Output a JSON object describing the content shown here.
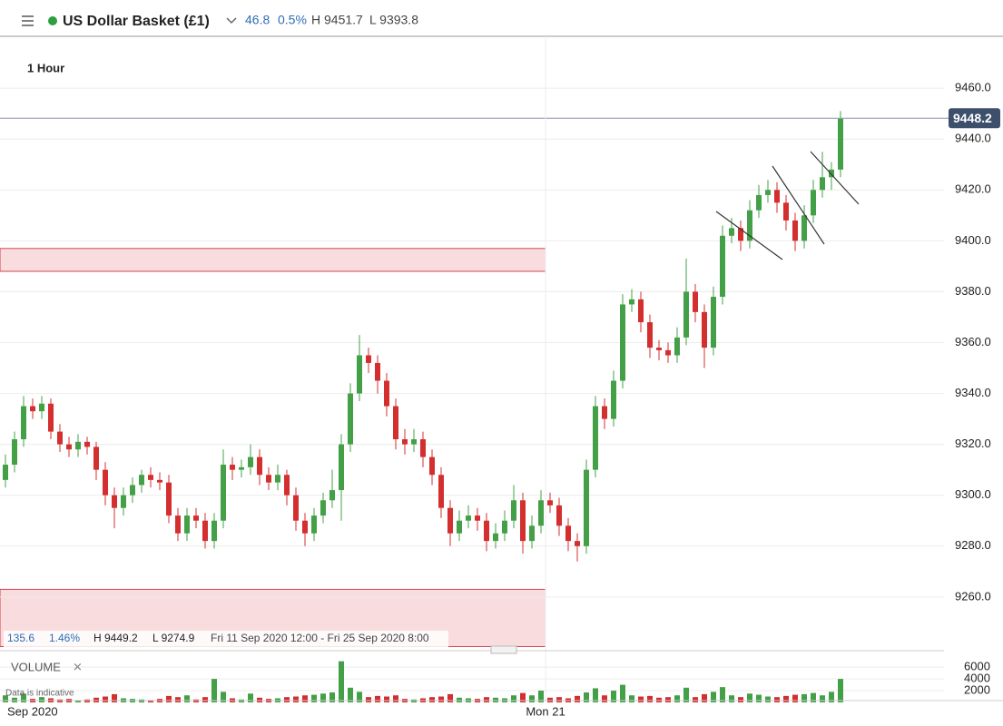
{
  "header": {
    "instrument": "US Dollar Basket (£1)",
    "change": "46.8",
    "change_pct": "0.5%",
    "high": "H 9451.7",
    "low": "L 9393.8"
  },
  "interval": "1 Hour",
  "stats": {
    "change": "135.6",
    "change_pct": "1.46%",
    "high": "H 9449.2",
    "low": "L 9274.9",
    "range": "Fri 11 Sep 2020 12:00 - Fri 25 Sep 2020 8:00"
  },
  "x_labels": [
    "Sep 2020",
    "Mon 21"
  ],
  "chart_data": [
    {
      "type": "candlestick",
      "up_color": "#43a047",
      "down_color": "#d32f2f",
      "ylim": [
        9239.6,
        9480.4
      ],
      "yticks": [
        {
          "value": 9260,
          "label": "9260.0"
        },
        {
          "value": 9280,
          "label": "9280.0"
        },
        {
          "value": 9300,
          "label": "9300.0"
        },
        {
          "value": 9320,
          "label": "9320.0"
        },
        {
          "value": 9340,
          "label": "9340.0"
        },
        {
          "value": 9360,
          "label": "9360.0"
        },
        {
          "value": 9380,
          "label": "9380.0"
        },
        {
          "value": 9400,
          "label": "9400.0"
        },
        {
          "value": 9420,
          "label": "9420.0"
        },
        {
          "value": 9440,
          "label": "9440.0"
        },
        {
          "value": 9460,
          "label": "9460.0"
        }
      ],
      "grid": true,
      "last_price": 9448.2,
      "zones": [
        [
          9388,
          9397
        ],
        [
          9240.5,
          9263
        ]
      ],
      "open": [
        9306,
        9312,
        9322,
        9335,
        9333,
        9336,
        9325,
        9320,
        9318,
        9321,
        9319,
        9310,
        9300,
        9295,
        9300,
        9304,
        9308,
        9306,
        9305,
        9292,
        9285,
        9292,
        9290,
        9282,
        9290,
        9312,
        9310,
        9311,
        9315,
        9308,
        9305,
        9308,
        9300,
        9290,
        9285,
        9292,
        9298,
        9302,
        9320,
        9340,
        9355,
        9352,
        9345,
        9335,
        9322,
        9320,
        9322,
        9315,
        9308,
        9295,
        9285,
        9290,
        9292,
        9290,
        9282,
        9285,
        9290,
        9298,
        9282,
        9288,
        9298,
        9296,
        9288,
        9282,
        9280,
        9310,
        9335,
        9330,
        9345,
        9375,
        9377,
        9368,
        9358,
        9357,
        9355,
        9362,
        9380,
        9372,
        9358,
        9378,
        9402,
        9405,
        9400,
        9412,
        9418,
        9420,
        9415,
        9408,
        9400,
        9410,
        9420,
        9425,
        9428
      ],
      "high": [
        9316,
        9325,
        9339,
        9338,
        9339,
        9338,
        9328,
        9323,
        9324,
        9323,
        9321,
        9313,
        9303,
        9303,
        9307,
        9310,
        9311,
        9309,
        9308,
        9295,
        9295,
        9295,
        9293,
        9293,
        9318,
        9315,
        9314,
        9320,
        9318,
        9311,
        9312,
        9310,
        9303,
        9293,
        9295,
        9301,
        9310,
        9324,
        9344,
        9363,
        9358,
        9355,
        9348,
        9338,
        9326,
        9326,
        9325,
        9318,
        9311,
        9298,
        9294,
        9296,
        9295,
        9293,
        9289,
        9294,
        9304,
        9301,
        9292,
        9302,
        9301,
        9299,
        9291,
        9285,
        9314,
        9339,
        9338,
        9349,
        9379,
        9381,
        9380,
        9371,
        9361,
        9360,
        9366,
        9393,
        9383,
        9375,
        9382,
        9406,
        9409,
        9408,
        9416,
        9422,
        9424,
        9423,
        9418,
        9411,
        9414,
        9424,
        9435,
        9431,
        9451
      ],
      "low": [
        9303,
        9309,
        9319,
        9330,
        9330,
        9322,
        9317,
        9315,
        9315,
        9316,
        9306,
        9296,
        9287,
        9292,
        9297,
        9301,
        9303,
        9302,
        9289,
        9282,
        9282,
        9287,
        9279,
        9279,
        9287,
        9306,
        9307,
        9308,
        9304,
        9302,
        9302,
        9296,
        9286,
        9280,
        9282,
        9289,
        9295,
        9290,
        9317,
        9337,
        9348,
        9340,
        9331,
        9318,
        9316,
        9317,
        9311,
        9304,
        9291,
        9280,
        9282,
        9287,
        9286,
        9278,
        9279,
        9282,
        9287,
        9277,
        9279,
        9285,
        9293,
        9284,
        9278,
        9274,
        9277,
        9307,
        9326,
        9327,
        9342,
        9372,
        9364,
        9354,
        9353,
        9352,
        9352,
        9359,
        9368,
        9350,
        9355,
        9375,
        9399,
        9396,
        9397,
        9409,
        9415,
        9411,
        9404,
        9396,
        9397,
        9407,
        9417,
        9420,
        9425
      ],
      "close": [
        9312,
        9322,
        9335,
        9333,
        9336,
        9325,
        9320,
        9318,
        9321,
        9319,
        9310,
        9300,
        9295,
        9300,
        9304,
        9308,
        9306,
        9305,
        9292,
        9285,
        9292,
        9290,
        9282,
        9290,
        9312,
        9310,
        9311,
        9315,
        9308,
        9305,
        9308,
        9300,
        9290,
        9285,
        9292,
        9298,
        9302,
        9320,
        9340,
        9355,
        9352,
        9345,
        9335,
        9322,
        9320,
        9322,
        9315,
        9308,
        9295,
        9285,
        9290,
        9292,
        9290,
        9282,
        9285,
        9290,
        9298,
        9282,
        9288,
        9298,
        9296,
        9288,
        9282,
        9280,
        9310,
        9335,
        9330,
        9345,
        9375,
        9377,
        9368,
        9358,
        9357,
        9355,
        9362,
        9380,
        9372,
        9358,
        9378,
        9402,
        9405,
        9400,
        9412,
        9418,
        9420,
        9415,
        9408,
        9400,
        9410,
        9420,
        9425,
        9428,
        9448
      ]
    },
    {
      "type": "bar",
      "title": "VOLUME",
      "note": "Data is indicative",
      "ylim": [
        0,
        7100
      ],
      "yticks": [
        2000,
        4000,
        6000
      ],
      "values": [
        1200,
        800,
        1500,
        600,
        900,
        700,
        500,
        600,
        400,
        500,
        800,
        1000,
        1400,
        700,
        600,
        500,
        400,
        600,
        1100,
        900,
        1200,
        500,
        900,
        4000,
        1800,
        700,
        500,
        1500,
        800,
        600,
        700,
        900,
        1000,
        1200,
        1300,
        1500,
        1700,
        7000,
        2500,
        1800,
        900,
        1100,
        1000,
        1200,
        600,
        500,
        700,
        900,
        1000,
        1400,
        800,
        700,
        600,
        900,
        800,
        700,
        1200,
        1600,
        1200,
        2000,
        800,
        900,
        700,
        1100,
        1700,
        2400,
        1200,
        2000,
        3000,
        1200,
        1000,
        1100,
        800,
        900,
        1200,
        2500,
        900,
        1400,
        1800,
        2600,
        1200,
        900,
        1500,
        1300,
        1000,
        900,
        1100,
        1300,
        1400,
        1600,
        1200,
        1800,
        4000
      ]
    }
  ]
}
